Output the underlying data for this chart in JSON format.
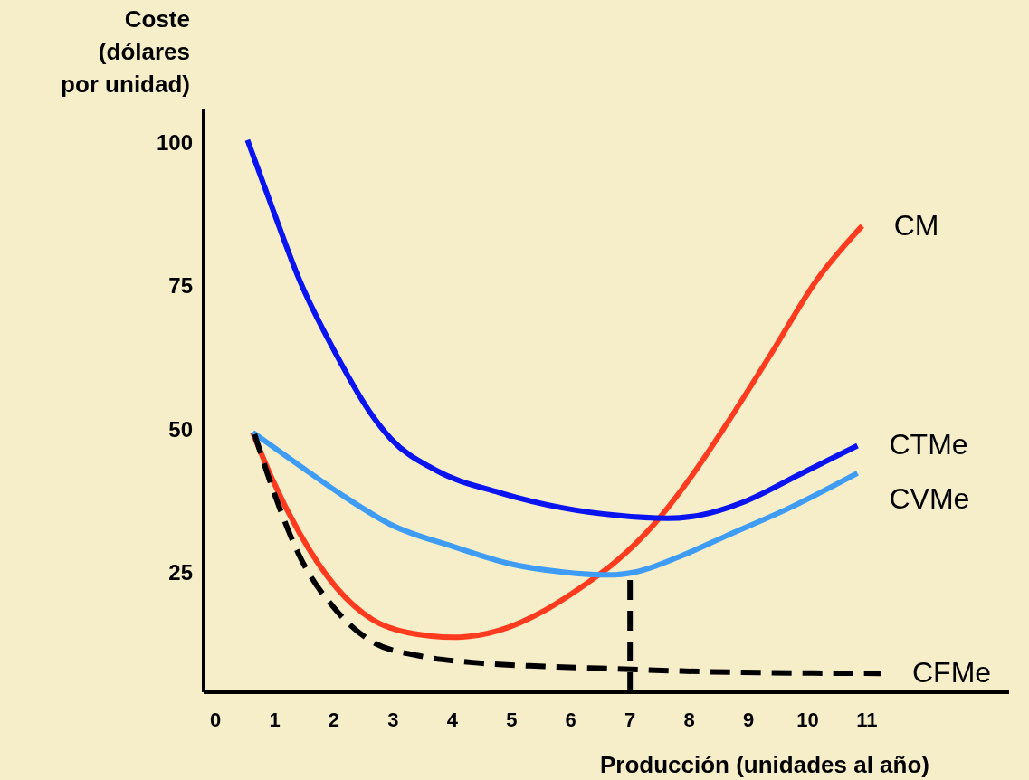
{
  "chart_data": {
    "type": "line",
    "xlabel": "Producción (unidades al año)",
    "ylabel": "Coste (dólares por unidad)",
    "xlim": [
      -0.2,
      13.4
    ],
    "ylim": [
      4,
      106
    ],
    "xticks": [
      0,
      1,
      2,
      3,
      4,
      5,
      6,
      7,
      8,
      9,
      10,
      11
    ],
    "yticks": [
      25,
      50,
      75,
      100
    ],
    "grid": false,
    "marker": "none",
    "series": [
      {
        "name": "CM",
        "color": "#ff3b1f",
        "line_style": "solid",
        "x": [
          0.63,
          0.96,
          1.42,
          2.04,
          2.65,
          3.26,
          4.03,
          4.79,
          5.56,
          6.17,
          6.78,
          7.4,
          8.0,
          8.62,
          9.39,
          10.15,
          10.92
        ],
        "values": [
          49.4,
          41.2,
          31.8,
          22.3,
          16.7,
          14.4,
          13.6,
          14.8,
          18.3,
          22.3,
          27,
          33.3,
          41.2,
          50.7,
          63.3,
          76,
          85.5
        ]
      },
      {
        "name": "CTMe",
        "color": "#0a14f0",
        "line_style": "solid",
        "x": [
          0.54,
          0.96,
          1.42,
          2.04,
          2.65,
          2.96,
          3.72,
          4.79,
          5.87,
          6.78,
          7.63,
          8.16,
          8.93,
          9.85,
          10.84
        ],
        "values": [
          100.5,
          88.6,
          76,
          63,
          52.3,
          48.3,
          42.8,
          38.9,
          36.2,
          34.9,
          34.4,
          34.9,
          37.3,
          42,
          47.1
        ]
      },
      {
        "name": "CVMe",
        "color": "#3f9cf5",
        "line_style": "solid",
        "x": [
          0.63,
          1.42,
          2.19,
          2.96,
          4.03,
          4.95,
          5.87,
          6.63,
          7.09,
          7.86,
          8.62,
          9.69,
          10.84
        ],
        "values": [
          49.4,
          43.6,
          38.1,
          33.3,
          29.4,
          26.5,
          25,
          24.5,
          25,
          27.8,
          31.3,
          36.2,
          42.3
        ]
      },
      {
        "name": "CFMe",
        "color": "#000000",
        "line_style": "dashed",
        "x": [
          0.66,
          0.96,
          1.42,
          2.04,
          2.65,
          3.42,
          4.34,
          5.56,
          6.71,
          7.86,
          9.39,
          11.23
        ],
        "values": [
          49.1,
          39.7,
          27.8,
          18.3,
          12.8,
          10.4,
          9.2,
          8.5,
          8.1,
          7.7,
          7.4,
          7.3
        ]
      },
      {
        "color": "#000000",
        "line_style": "dashed",
        "x": [
          7,
          7
        ],
        "values": [
          4,
          24.5
        ]
      }
    ]
  }
}
